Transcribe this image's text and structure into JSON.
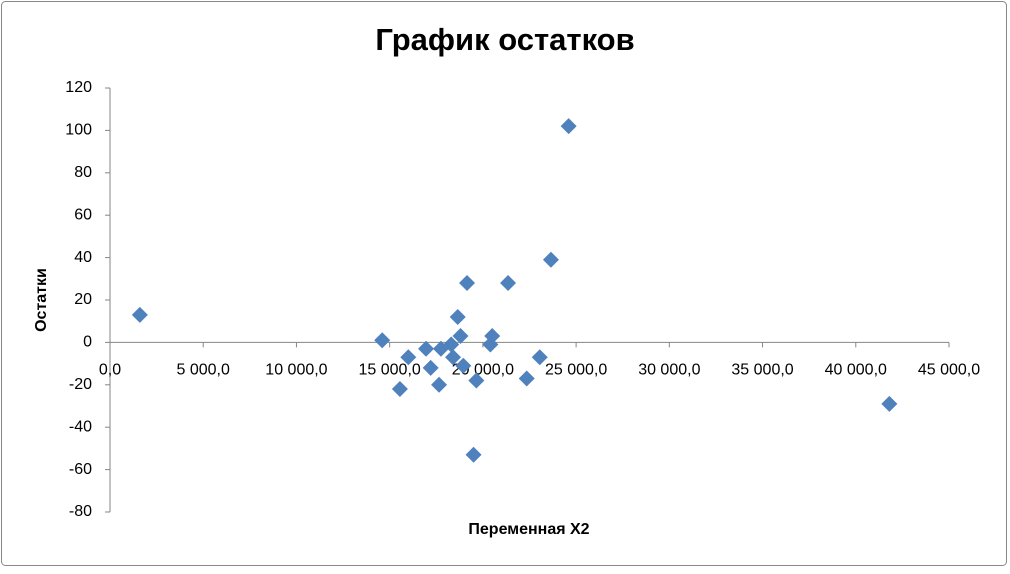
{
  "chart_data": {
    "type": "scatter",
    "title": "График остатков",
    "x_label": "Переменная X2",
    "y_label": "Остатки",
    "x": [
      1600,
      14600,
      15550,
      16000,
      16950,
      17200,
      17650,
      17750,
      18300,
      18400,
      18650,
      18800,
      18950,
      19150,
      19500,
      19650,
      20400,
      20500,
      21350,
      22350,
      23050,
      23650,
      24600,
      41800
    ],
    "values": [
      13,
      1,
      -22,
      -7,
      -3,
      -12,
      -20,
      -3,
      -1,
      -7,
      12,
      3,
      -11,
      28,
      -53,
      -18,
      -1,
      3,
      28,
      -17,
      -7,
      39,
      102,
      -29
    ],
    "color": "#4f81bd",
    "marker": "diamond",
    "xlim": [
      0,
      45000
    ],
    "xticks": [
      {
        "value": 0,
        "label": "0,0"
      },
      {
        "value": 5000,
        "label": "5 000,0"
      },
      {
        "value": 10000,
        "label": "10 000,0"
      },
      {
        "value": 15000,
        "label": "15 000,0"
      },
      {
        "value": 20000,
        "label": "20 000,0"
      },
      {
        "value": 25000,
        "label": "25 000,0"
      },
      {
        "value": 30000,
        "label": "30 000,0"
      },
      {
        "value": 35000,
        "label": "35 000,0"
      },
      {
        "value": 40000,
        "label": "40 000,0"
      },
      {
        "value": 45000,
        "label": "45 000,0"
      }
    ],
    "ylim": [
      -80,
      120
    ],
    "yticks": [
      -80,
      -60,
      -40,
      -20,
      0,
      20,
      40,
      60,
      80,
      100,
      120
    ],
    "grid": false
  }
}
